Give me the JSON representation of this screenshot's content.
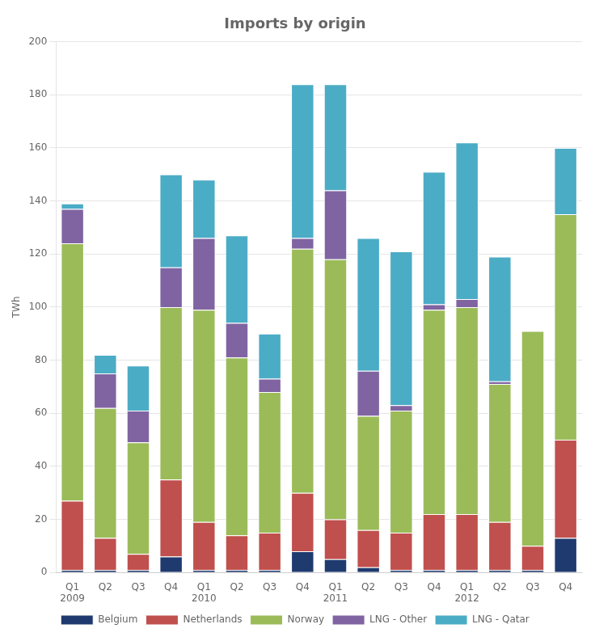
{
  "chart_data": {
    "type": "bar",
    "title": "Imports by origin",
    "ylabel": "TWh",
    "categories": [
      "Q1\n2009",
      "Q2",
      "Q3",
      "Q4",
      "Q1\n2010",
      "Q2",
      "Q3",
      "Q4",
      "Q1\n2011",
      "Q2",
      "Q3",
      "Q4",
      "Q1\n2012",
      "Q2",
      "Q3",
      "Q4"
    ],
    "series": [
      {
        "name": "Belgium",
        "color": "#1f3a6e",
        "values": [
          1,
          1,
          1,
          6,
          1,
          1,
          1,
          8,
          5,
          2,
          1,
          1,
          1,
          1,
          1,
          13
        ]
      },
      {
        "name": "Netherlands",
        "color": "#c0504d",
        "values": [
          26,
          12,
          6,
          29,
          18,
          13,
          14,
          22,
          15,
          14,
          14,
          21,
          21,
          18,
          9,
          37
        ]
      },
      {
        "name": "Norway",
        "color": "#9bbb59",
        "values": [
          97,
          49,
          42,
          65,
          80,
          67,
          53,
          92,
          98,
          43,
          46,
          77,
          78,
          52,
          81,
          85
        ]
      },
      {
        "name": "LNG - Other",
        "color": "#8064a2",
        "values": [
          13,
          13,
          12,
          15,
          27,
          13,
          5,
          4,
          26,
          17,
          2,
          2,
          3,
          1,
          0,
          0
        ]
      },
      {
        "name": "LNG - Qatar",
        "color": "#4bacc6",
        "values": [
          2,
          7,
          17,
          35,
          22,
          33,
          17,
          58,
          40,
          50,
          58,
          50,
          59,
          47,
          0,
          25
        ]
      }
    ],
    "stacked": true,
    "ylim": [
      0,
      200
    ],
    "yticks": [
      0,
      20,
      40,
      60,
      80,
      100,
      120,
      140,
      160,
      180,
      200
    ],
    "grid": true,
    "legend": "bottom"
  }
}
